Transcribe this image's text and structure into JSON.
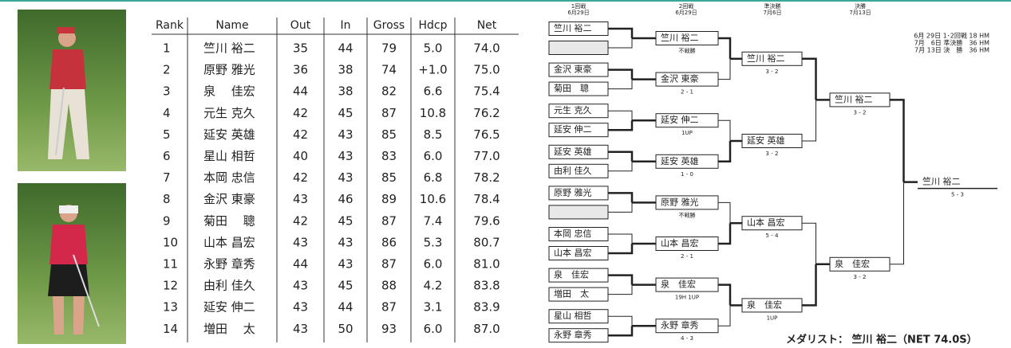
{
  "table": {
    "header": [
      "Rank",
      "Name",
      "Out",
      "In",
      "Gross",
      "Hdcp",
      "Net"
    ],
    "rows": [
      [
        "1",
        "竺川 裕二",
        "35",
        "44",
        "79",
        "5.0",
        "74.0"
      ],
      [
        "2",
        "原野 雅光",
        "36",
        "38",
        "74",
        "+1.0",
        "75.0"
      ],
      [
        "3",
        "泉　 佳宏",
        "44",
        "38",
        "82",
        "6.6",
        "75.4"
      ],
      [
        "4",
        "元生 克久",
        "42",
        "45",
        "87",
        "10.8",
        "76.2"
      ],
      [
        "5",
        "延安 英雄",
        "42",
        "43",
        "85",
        "8.5",
        "76.5"
      ],
      [
        "6",
        "星山 相哲",
        "40",
        "43",
        "83",
        "6.0",
        "77.0"
      ],
      [
        "7",
        "本岡 忠信",
        "42",
        "43",
        "85",
        "6.8",
        "78.2"
      ],
      [
        "8",
        "金沢 東豪",
        "43",
        "46",
        "89",
        "10.6",
        "78.4"
      ],
      [
        "9",
        "菊田　 聰",
        "42",
        "45",
        "87",
        "7.4",
        "79.6"
      ],
      [
        "10",
        "山本 昌宏",
        "43",
        "43",
        "86",
        "5.3",
        "80.7"
      ],
      [
        "11",
        "永野 章秀",
        "44",
        "43",
        "87",
        "6.0",
        "81.0"
      ],
      [
        "12",
        "由利 佳久",
        "43",
        "45",
        "88",
        "4.2",
        "83.8"
      ],
      [
        "13",
        "延安 伸二",
        "43",
        "44",
        "87",
        "3.1",
        "83.9"
      ],
      [
        "14",
        "増田　 太",
        "43",
        "50",
        "93",
        "6.0",
        "87.0"
      ]
    ]
  },
  "bracket": {
    "round_headers": [
      {
        "round": "1回戦",
        "date": "6月29日"
      },
      {
        "round": "2回戦",
        "date": "6月29日"
      },
      {
        "round": "準決勝",
        "date": "7月6日"
      },
      {
        "round": "決勝",
        "date": "7月13日"
      }
    ],
    "schedule": [
      "6月 29日 1･2回戦 18 HM",
      "7月　6日 準決勝　36 HM",
      "7月 13日 決　勝　36 HM"
    ],
    "rounds": [
      {
        "entries": [
          {
            "name": "竺川 裕二"
          },
          {
            "name": null
          },
          {
            "name": "金沢 東豪"
          },
          {
            "name": "菊田　聰"
          },
          {
            "name": "元生 克久"
          },
          {
            "name": "延安 伸二"
          },
          {
            "name": "延安 英雄"
          },
          {
            "name": "由利 佳久"
          },
          {
            "name": "原野 雅光"
          },
          {
            "name": null
          },
          {
            "name": "本岡 忠信"
          },
          {
            "name": "山本 昌宏"
          },
          {
            "name": "泉　佳宏"
          },
          {
            "name": "増田　太"
          },
          {
            "name": "星山 相哲"
          },
          {
            "name": "永野 章秀"
          }
        ]
      },
      {
        "entries": [
          {
            "name": "竺川 裕二",
            "result": "不戦勝"
          },
          {
            "name": "金沢 東豪",
            "result": "2 - 1"
          },
          {
            "name": "延安 伸二",
            "result": "1UP"
          },
          {
            "name": "延安 英雄",
            "result": "1 - 0"
          },
          {
            "name": "原野 雅光",
            "result": "不戦勝"
          },
          {
            "name": "山本 昌宏",
            "result": "2 - 1"
          },
          {
            "name": "泉　佳宏",
            "result": "19H 1UP"
          },
          {
            "name": "永野 章秀",
            "result": "4 - 3"
          }
        ]
      },
      {
        "entries": [
          {
            "name": "竺川 裕二",
            "result": "3 - 2"
          },
          {
            "name": "延安 英雄",
            "result": "3 - 2"
          },
          {
            "name": "山本 昌宏",
            "result": "5 - 4"
          },
          {
            "name": "泉　佳宏",
            "result": "1UP"
          }
        ]
      },
      {
        "entries": [
          {
            "name": "竺川 裕二",
            "result": "3 - 2"
          },
          {
            "name": "泉　佳宏",
            "result": "3 - 2"
          }
        ]
      },
      {
        "entries": [
          {
            "name": "竺川 裕二",
            "result": "5 - 3"
          }
        ]
      }
    ],
    "medalist": "メダリスト： 竺川 裕二（NET 74.0S）"
  }
}
